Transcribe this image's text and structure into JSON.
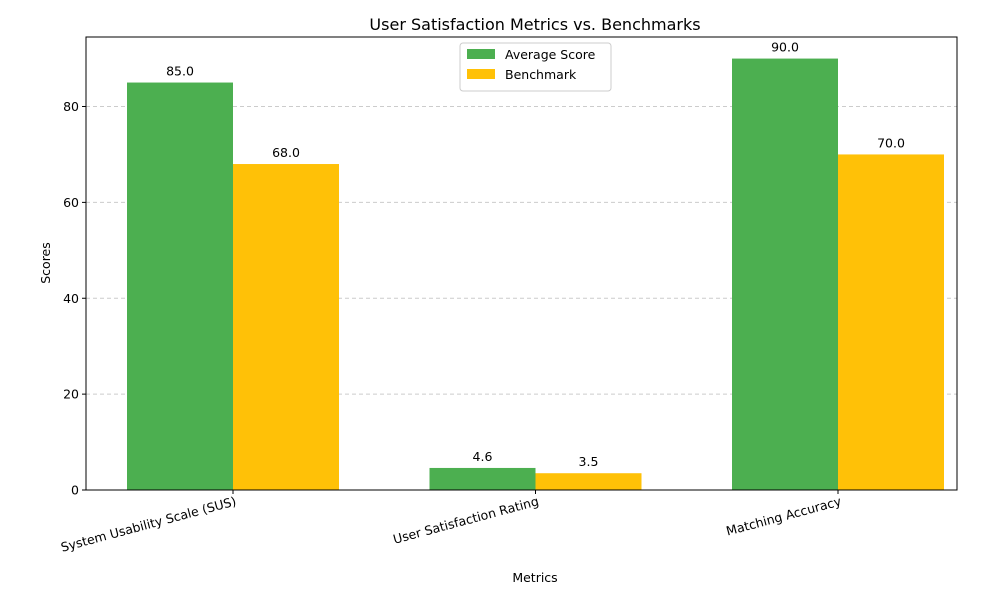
{
  "chart_data": {
    "type": "bar",
    "title": "User Satisfaction Metrics vs. Benchmarks",
    "xlabel": "Metrics",
    "ylabel": "Scores",
    "categories": [
      "System Usability Scale (SUS)",
      "User Satisfaction Rating",
      "Matching Accuracy"
    ],
    "series": [
      {
        "name": "Average Score",
        "values": [
          85.0,
          4.6,
          90.0
        ],
        "color": "#4caf50"
      },
      {
        "name": "Benchmark",
        "values": [
          68.0,
          3.5,
          70.0
        ],
        "color": "#ffc107"
      }
    ],
    "ylim": [
      0,
      94.5
    ],
    "yticks": [
      0,
      20,
      40,
      60,
      80
    ],
    "grid": "y-dashed",
    "legend": "top-center",
    "data_labels": [
      "85.0",
      "4.6",
      "90.0",
      "68.0",
      "3.5",
      "70.0"
    ]
  }
}
